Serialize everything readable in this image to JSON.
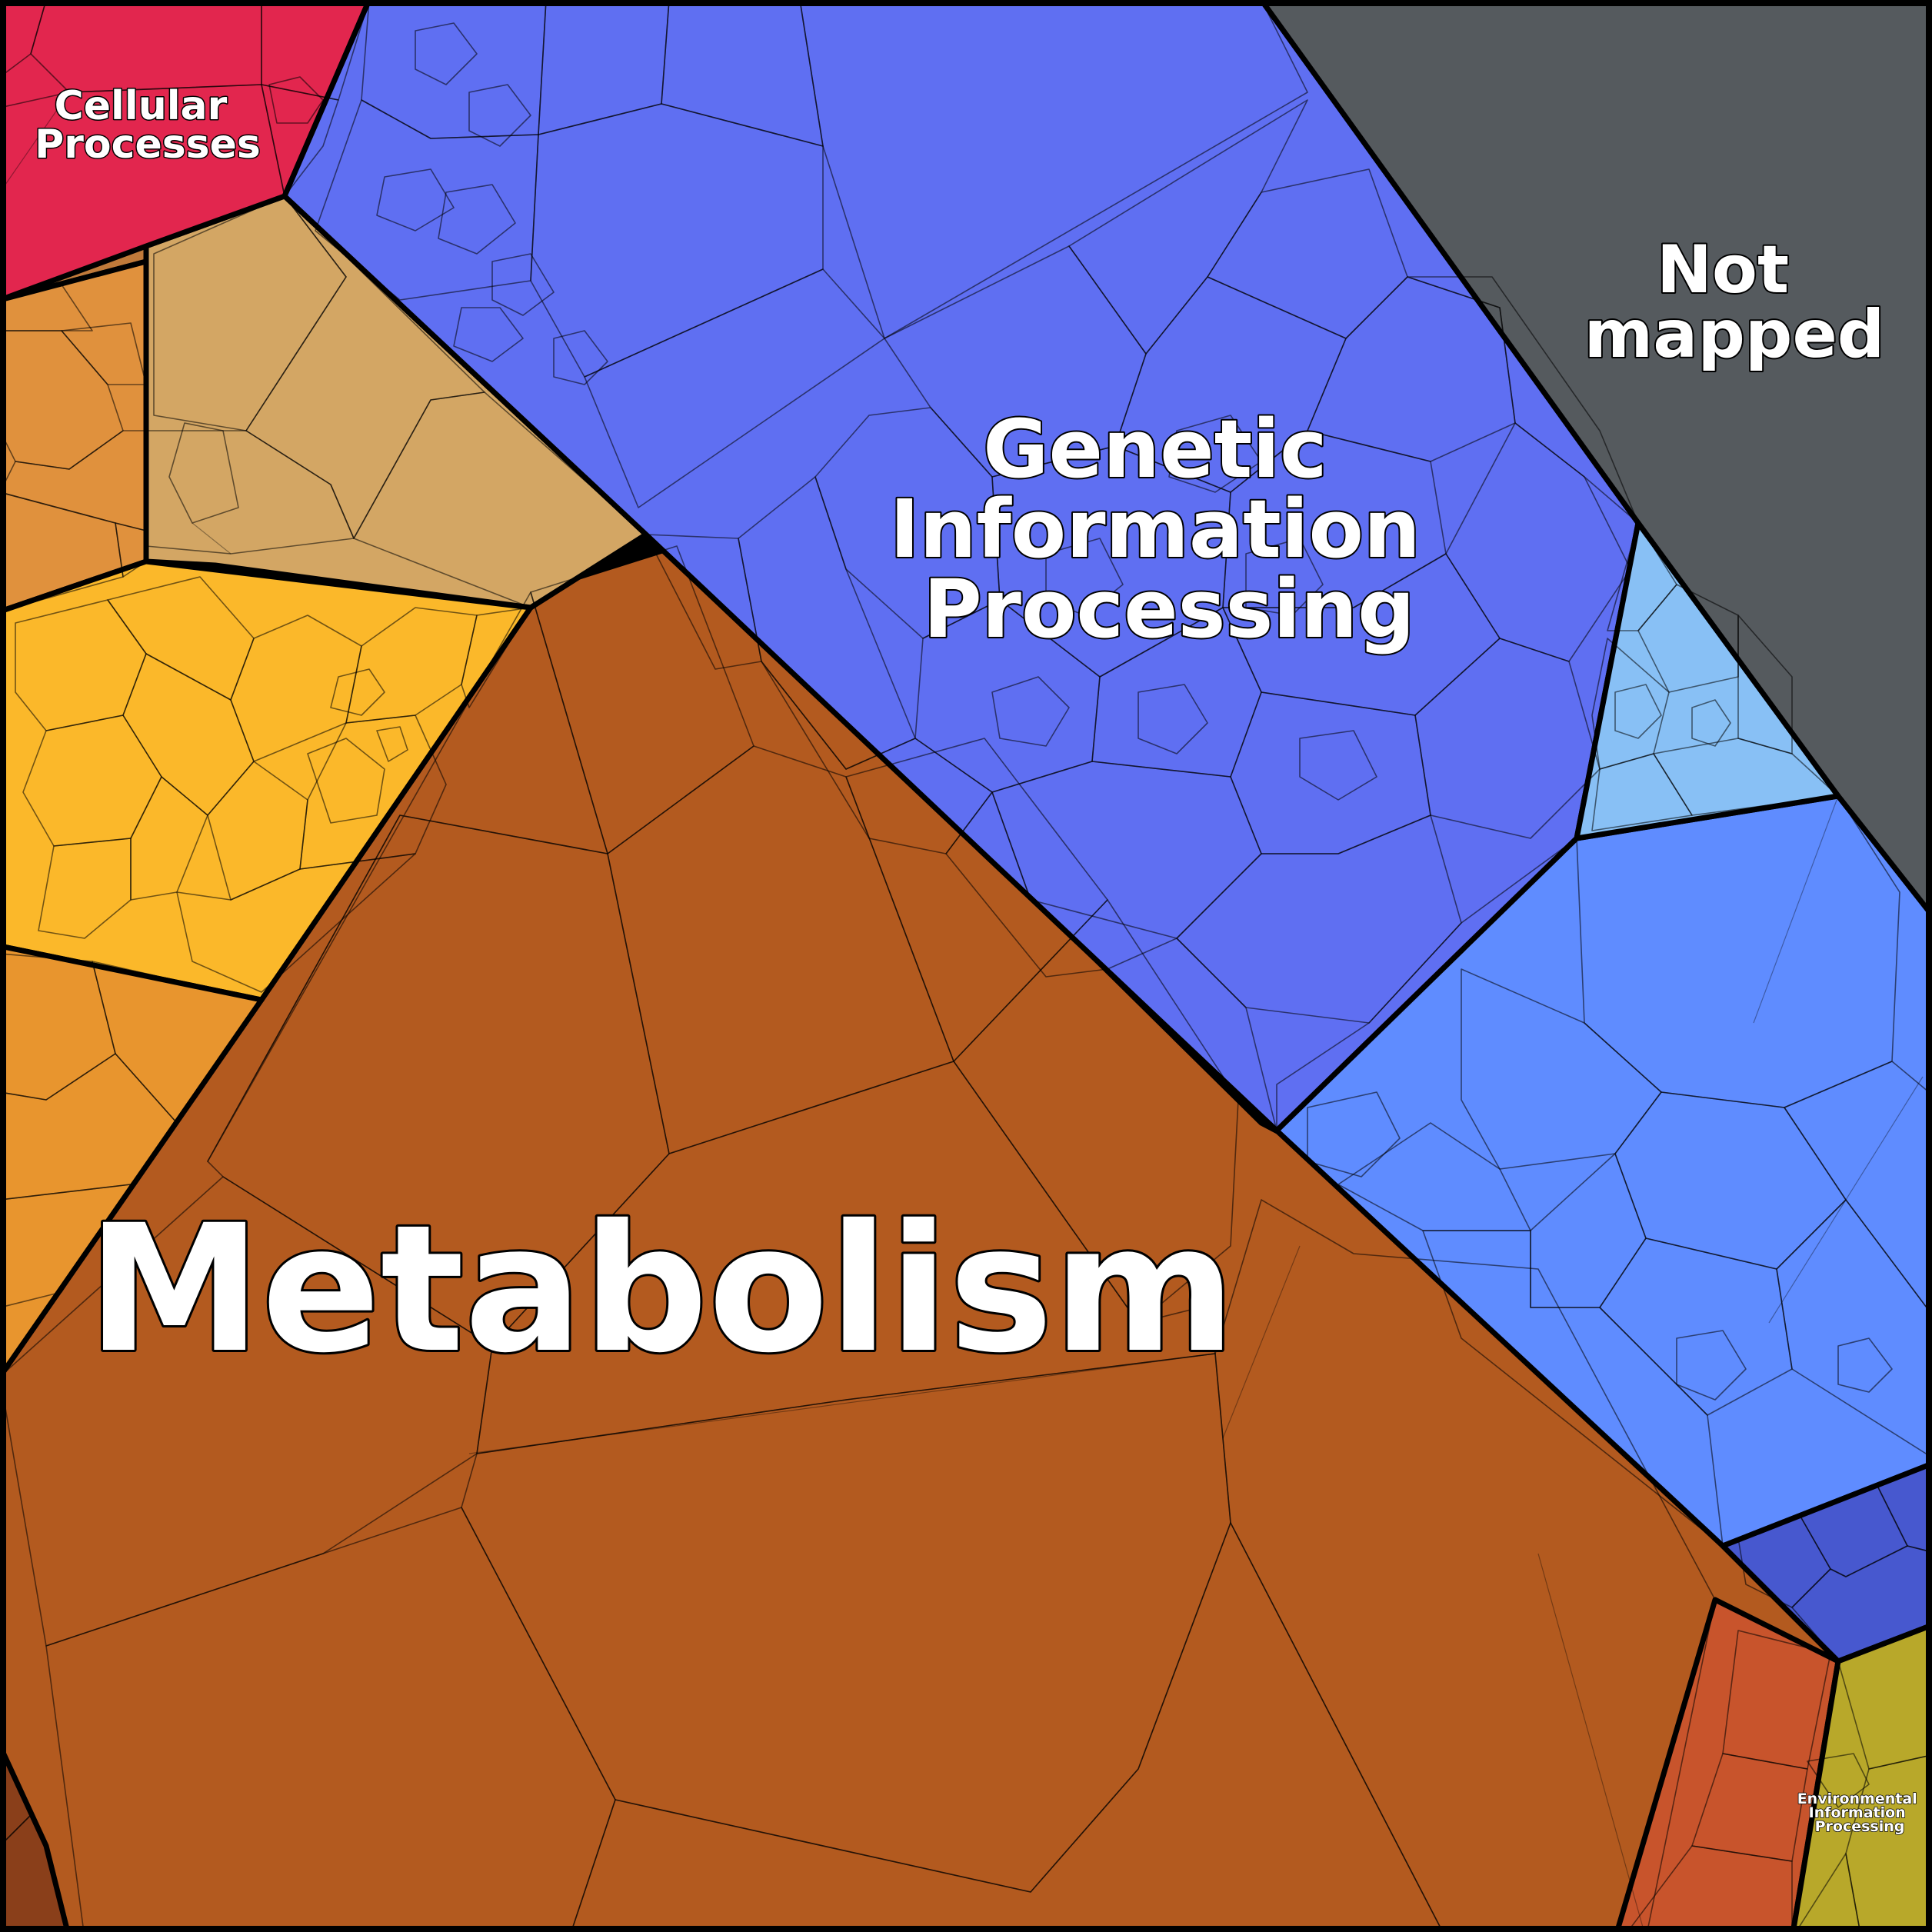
{
  "diagram": {
    "type": "voronoi-treemap",
    "categories": [
      {
        "key": "metabolism",
        "label_lines": [
          "Metabolism"
        ],
        "color": "#b35a1f"
      },
      {
        "key": "genetic",
        "label_lines": [
          "Genetic",
          "Information",
          "Processing"
        ],
        "color": "#5f6ff2"
      },
      {
        "key": "not_mapped",
        "label_lines": [
          "Not",
          "mapped"
        ],
        "color": "#555a5e"
      },
      {
        "key": "cellular",
        "label_lines": [
          "Cellular",
          "Processes"
        ],
        "color": "#e2264e"
      },
      {
        "key": "environmental",
        "label_lines": [
          "Environmental",
          "Information",
          "Processing"
        ],
        "color": "#b8a82a"
      }
    ],
    "secondary_colors": {
      "light_blue": "#5f8cff",
      "sky_blue": "#88c0f5",
      "tan": "#d3a664",
      "orange_brown": "#c07a3a",
      "yellow_orange": "#fbb82a",
      "indigo": "#4758cf",
      "red_orange": "#c8542c",
      "dark_blue_cells": "#4f6fe0"
    }
  }
}
